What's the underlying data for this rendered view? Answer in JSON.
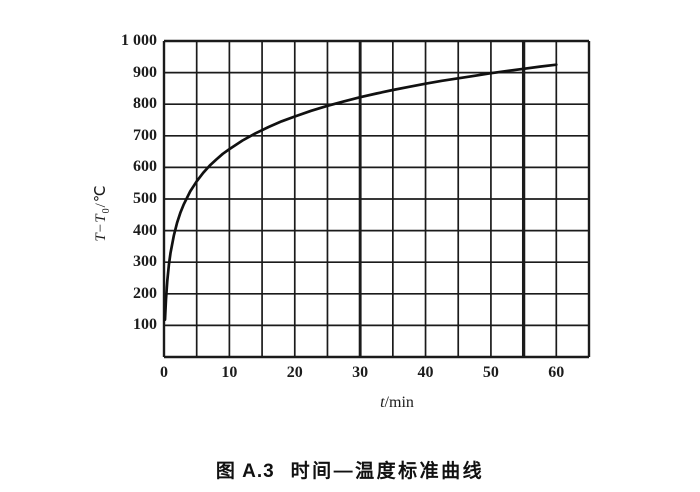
{
  "caption": {
    "number": "图 A.3",
    "title": "时间—温度标准曲线"
  },
  "labels": {
    "y_t1": "T",
    "y_minus": "−",
    "y_t2": "T",
    "y_sub": "0",
    "y_unit": "/℃",
    "x_sym": "t",
    "x_unit": "/min"
  },
  "chart_data": {
    "type": "line",
    "title": "图 A.3 时间—温度标准曲线",
    "xlabel": "t/min",
    "ylabel": "T−T₀/℃",
    "xlim": [
      0,
      65
    ],
    "ylim": [
      0,
      1000
    ],
    "x_grid_step": 5,
    "y_grid_step": 100,
    "grid": true,
    "legend": "none",
    "x_ticks": [
      0,
      10,
      20,
      30,
      40,
      50,
      60
    ],
    "x_tick_labels": [
      "0",
      "10",
      "20",
      "30",
      "40",
      "50",
      "60"
    ],
    "y_ticks": [
      100,
      200,
      300,
      400,
      500,
      600,
      700,
      800,
      900,
      1000
    ],
    "y_tick_labels": [
      "100",
      "200",
      "300",
      "400",
      "500",
      "600",
      "700",
      "800",
      "900",
      "1 000"
    ],
    "series": [
      {
        "x": [
          0.15,
          0.3,
          0.5,
          0.75,
          1,
          1.5,
          2,
          2.5,
          3,
          4,
          5,
          6,
          7,
          8,
          9,
          10,
          12,
          14,
          16,
          18,
          20,
          22.5,
          25,
          27.5,
          30,
          32.5,
          35,
          37.5,
          40,
          42.5,
          45,
          47.5,
          50,
          52.5,
          55,
          57.5,
          60
        ],
        "y": [
          118,
          183,
          241,
          292,
          329,
          384,
          425,
          456,
          482,
          524,
          556,
          583,
          606,
          625,
          643,
          658,
          685,
          708,
          728,
          746,
          761,
          779,
          795,
          809,
          822,
          834,
          845,
          855,
          865,
          874,
          882,
          890,
          898,
          905,
          912,
          919,
          925
        ]
      }
    ]
  }
}
